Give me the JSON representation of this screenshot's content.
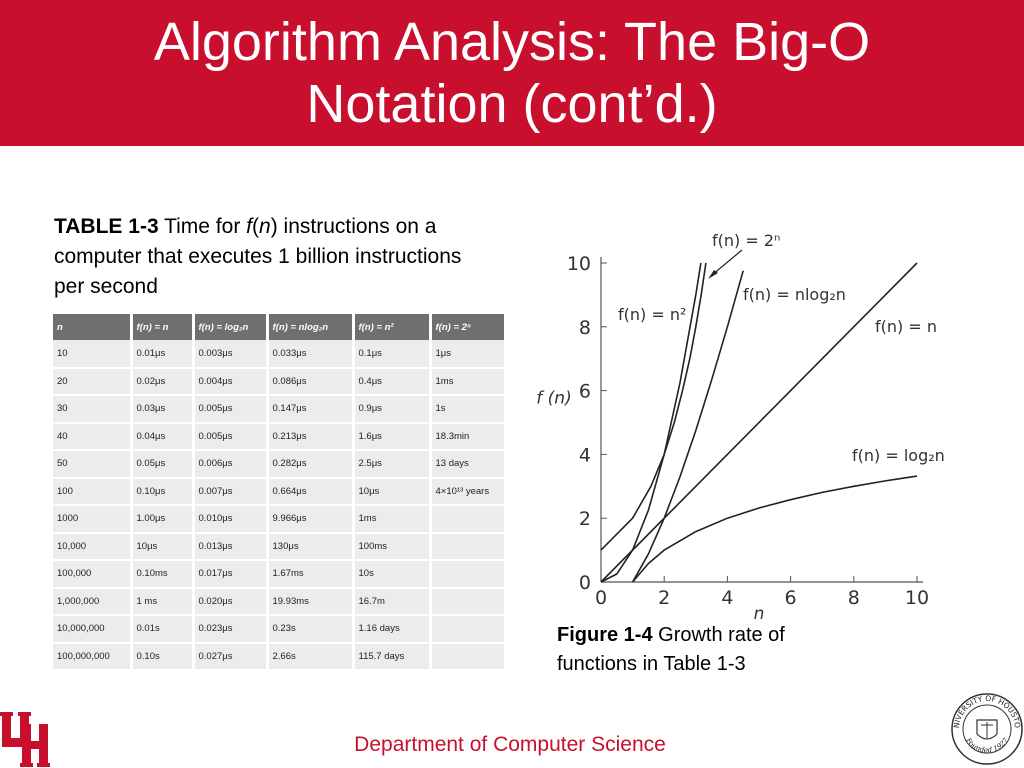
{
  "slide": {
    "title": "Algorithm Analysis: The Big-O Notation (cont’d.)",
    "footer": "Department of Computer Science"
  },
  "table_caption": {
    "label": "TABLE 1-3",
    "text_before": " Time for ",
    "func_f": "f",
    "func_n": "n",
    "text_after": " instructions on a computer that executes 1 billion instructions per second"
  },
  "table": {
    "columns": [
      "n",
      "f(n) = n",
      "f(n) = log₂n",
      "f(n) = nlog₂n",
      "f(n) = n²",
      "f(n) = 2ⁿ"
    ],
    "rows": [
      [
        "10",
        "0.01μs",
        "0.003μs",
        "0.033μs",
        "0.1μs",
        "1μs"
      ],
      [
        "20",
        "0.02μs",
        "0.004μs",
        "0.086μs",
        "0.4μs",
        "1ms"
      ],
      [
        "30",
        "0.03μs",
        "0.005μs",
        "0.147μs",
        "0.9μs",
        "1s"
      ],
      [
        "40",
        "0.04μs",
        "0.005μs",
        "0.213μs",
        "1.6μs",
        "18.3min"
      ],
      [
        "50",
        "0.05μs",
        "0.006μs",
        "0.282μs",
        "2.5μs",
        "13 days"
      ],
      [
        "100",
        "0.10μs",
        "0.007μs",
        "0.664μs",
        "10μs",
        "4×10¹³ years"
      ],
      [
        "1000",
        "1.00μs",
        "0.010μs",
        "9.966μs",
        "1ms",
        ""
      ],
      [
        "10,000",
        "10μs",
        "0.013μs",
        "130μs",
        "100ms",
        ""
      ],
      [
        "100,000",
        "0.10ms",
        "0.017μs",
        "1.67ms",
        "10s",
        ""
      ],
      [
        "1,000,000",
        "1 ms",
        "0.020μs",
        "19.93ms",
        "16.7m",
        ""
      ],
      [
        "10,000,000",
        "0.01s",
        "0.023μs",
        "0.23s",
        "1.16 days",
        ""
      ],
      [
        "100,000,000",
        "0.10s",
        "0.027μs",
        "2.66s",
        "115.7 days",
        ""
      ]
    ]
  },
  "chart_data": {
    "type": "line",
    "title": "",
    "xlabel": "n",
    "ylabel": "f (n)",
    "xlim": [
      0,
      10
    ],
    "ylim": [
      0,
      10
    ],
    "xticks": [
      0,
      2,
      4,
      6,
      8,
      10
    ],
    "yticks": [
      0,
      2,
      4,
      6,
      8,
      10
    ],
    "grid": false,
    "series": [
      {
        "name": "f(n) = 2ⁿ",
        "function": "2^n",
        "x": [
          0,
          1,
          1.58,
          2,
          2.32,
          2.58,
          2.81,
          3,
          3.17,
          3.32
        ],
        "y": [
          1,
          2,
          3,
          4,
          5,
          6,
          7,
          8,
          9,
          10
        ]
      },
      {
        "name": "f(n) = n²",
        "function": "n^2",
        "x": [
          0,
          0.5,
          1,
          1.5,
          2,
          2.5,
          3,
          3.16
        ],
        "y": [
          0,
          0.25,
          1,
          2.25,
          4,
          6.25,
          9,
          10
        ]
      },
      {
        "name": "f(n) = nlog₂n",
        "function": "n*log2(n)",
        "x": [
          1,
          1.5,
          2,
          2.5,
          3,
          3.5,
          4,
          4.5
        ],
        "y": [
          0,
          0.88,
          2,
          3.3,
          4.75,
          6.33,
          8,
          9.76
        ]
      },
      {
        "name": "f(n) = n",
        "function": "n",
        "x": [
          0,
          10
        ],
        "y": [
          0,
          10
        ]
      },
      {
        "name": "f(n) = log₂n",
        "function": "log2(n)",
        "x": [
          1,
          1.5,
          2,
          3,
          4,
          5,
          6,
          7,
          8,
          9,
          10
        ],
        "y": [
          0,
          0.58,
          1,
          1.58,
          2,
          2.32,
          2.58,
          2.81,
          3,
          3.17,
          3.32
        ]
      }
    ],
    "curve_labels": [
      "f(n) = 2ⁿ",
      "f(n) = n²",
      "f(n) = nlog₂n",
      "f(n) = n",
      "f(n) = log₂n"
    ]
  },
  "figure_caption": {
    "label": "Figure 1-4",
    "text": " Growth rate of functions in Table 1-3"
  },
  "logo": {
    "seal_text_top": "UNIVERSITY OF HOUSTON",
    "seal_text_bottom": "Founded 1927"
  }
}
